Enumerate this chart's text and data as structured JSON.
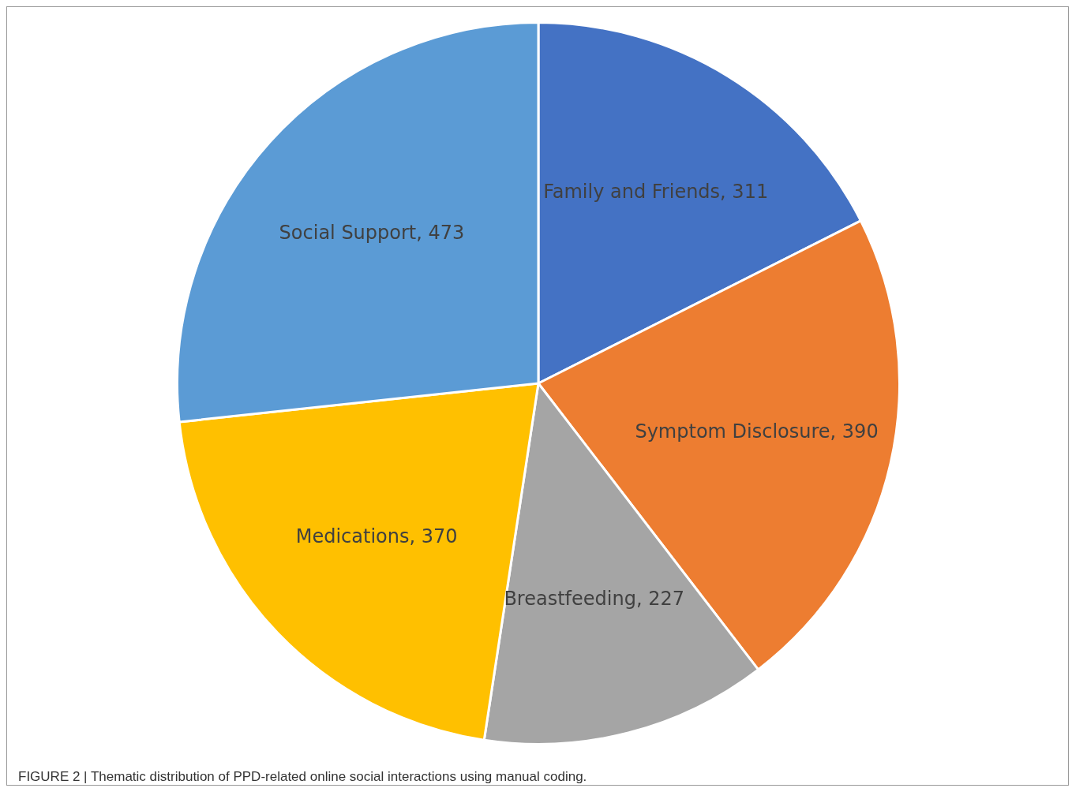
{
  "chart_data": {
    "type": "pie",
    "categories": [
      "Family and Friends",
      "Symptom Disclosure",
      "Breastfeeding",
      "Medications",
      "Social Support"
    ],
    "values": [
      311,
      390,
      227,
      370,
      473
    ],
    "value_labels": [
      ", 311",
      ", 390",
      ", 227",
      ", 370",
      ", 473"
    ],
    "colors": [
      "#4472c4",
      "#ed7d31",
      "#a5a5a5",
      "#ffc000",
      "#5b9bd5"
    ],
    "legend": false,
    "annotations": [
      "FIGURE 2 | Thematic distribution of PPD-related online social interactions using manual coding."
    ]
  }
}
